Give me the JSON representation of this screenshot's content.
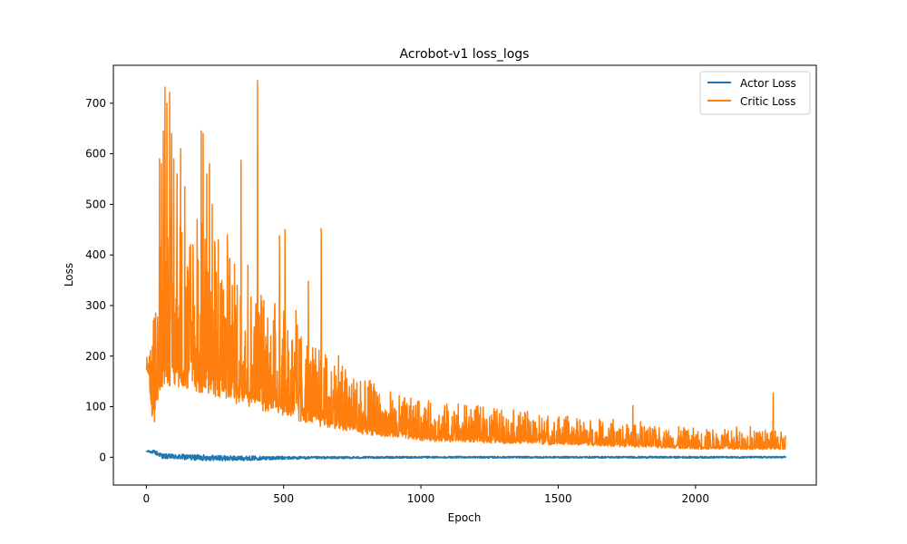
{
  "chart_data": {
    "type": "line",
    "title": "Acrobot-v1 loss_logs",
    "xlabel": "Epoch",
    "ylabel": "Loss",
    "xlim": [
      -120,
      2440
    ],
    "ylim": [
      -55,
      775
    ],
    "xticks": [
      0,
      500,
      1000,
      1500,
      2000
    ],
    "yticks": [
      0,
      100,
      200,
      300,
      400,
      500,
      600,
      700
    ],
    "grid": false,
    "legend_position": "top-right",
    "n_points": 2330,
    "series": [
      {
        "name": "Actor Loss",
        "color": "#1f77b4",
        "noise_amplitude": 4,
        "envelope": [
          [
            0,
            12
          ],
          [
            30,
            10
          ],
          [
            60,
            2
          ],
          [
            150,
            0
          ],
          [
            300,
            -2
          ],
          [
            600,
            -1
          ],
          [
            1000,
            0
          ],
          [
            2330,
            0
          ]
        ],
        "spread": [
          [
            0,
            2
          ],
          [
            40,
            8
          ],
          [
            200,
            10
          ],
          [
            400,
            7
          ],
          [
            600,
            4
          ],
          [
            1000,
            3
          ],
          [
            2330,
            3
          ]
        ]
      },
      {
        "name": "Critic Loss",
        "color": "#ff7f0e",
        "envelope": [
          [
            0,
            175
          ],
          [
            10,
            165
          ],
          [
            20,
            90
          ],
          [
            30,
            110
          ],
          [
            60,
            180
          ],
          [
            150,
            170
          ],
          [
            300,
            140
          ],
          [
            450,
            110
          ],
          [
            600,
            80
          ],
          [
            800,
            55
          ],
          [
            1000,
            40
          ],
          [
            1500,
            30
          ],
          [
            2000,
            20
          ],
          [
            2330,
            18
          ]
        ],
        "spread": [
          [
            0,
            20
          ],
          [
            60,
            260
          ],
          [
            250,
            220
          ],
          [
            450,
            160
          ],
          [
            650,
            100
          ],
          [
            900,
            60
          ],
          [
            1200,
            50
          ],
          [
            1500,
            40
          ],
          [
            1800,
            30
          ],
          [
            2330,
            25
          ]
        ],
        "peaks": [
          [
            0,
            175
          ],
          [
            10,
            170
          ],
          [
            20,
            110
          ],
          [
            30,
            70
          ],
          [
            40,
            190
          ],
          [
            48,
            590
          ],
          [
            55,
            580
          ],
          [
            62,
            645
          ],
          [
            68,
            732
          ],
          [
            75,
            700
          ],
          [
            85,
            722
          ],
          [
            92,
            640
          ],
          [
            100,
            590
          ],
          [
            112,
            560
          ],
          [
            125,
            610
          ],
          [
            140,
            535
          ],
          [
            155,
            350
          ],
          [
            170,
            420
          ],
          [
            185,
            470
          ],
          [
            200,
            645
          ],
          [
            207,
            640
          ],
          [
            220,
            560
          ],
          [
            230,
            580
          ],
          [
            240,
            500
          ],
          [
            250,
            420
          ],
          [
            262,
            430
          ],
          [
            275,
            350
          ],
          [
            295,
            440
          ],
          [
            310,
            260
          ],
          [
            325,
            300
          ],
          [
            345,
            587
          ],
          [
            360,
            250
          ],
          [
            370,
            380
          ],
          [
            380,
            180
          ],
          [
            392,
            240
          ],
          [
            405,
            745
          ],
          [
            418,
            320
          ],
          [
            428,
            310
          ],
          [
            440,
            220
          ],
          [
            452,
            160
          ],
          [
            470,
            250
          ],
          [
            485,
            438
          ],
          [
            500,
            265
          ],
          [
            505,
            450
          ],
          [
            515,
            250
          ],
          [
            530,
            230
          ],
          [
            545,
            290
          ],
          [
            560,
            200
          ],
          [
            580,
            170
          ],
          [
            590,
            348
          ],
          [
            605,
            180
          ],
          [
            620,
            160
          ],
          [
            637,
            452
          ],
          [
            650,
            150
          ],
          [
            665,
            120
          ],
          [
            685,
            180
          ],
          [
            700,
            201
          ],
          [
            720,
            130
          ],
          [
            740,
            140
          ],
          [
            760,
            120
          ],
          [
            780,
            150
          ],
          [
            800,
            80
          ],
          [
            850,
            90
          ],
          [
            890,
            110
          ],
          [
            930,
            100
          ],
          [
            1000,
            80
          ],
          [
            1050,
            75
          ],
          [
            1100,
            70
          ],
          [
            1150,
            60
          ],
          [
            1200,
            70
          ],
          [
            1240,
            75
          ],
          [
            1300,
            80
          ],
          [
            1350,
            60
          ],
          [
            1400,
            70
          ],
          [
            1450,
            70
          ],
          [
            1500,
            65
          ],
          [
            1550,
            60
          ],
          [
            1600,
            55
          ],
          [
            1650,
            75
          ],
          [
            1700,
            75
          ],
          [
            1750,
            65
          ],
          [
            1772,
            102
          ],
          [
            1800,
            70
          ],
          [
            1850,
            50
          ],
          [
            1900,
            35
          ],
          [
            1950,
            30
          ],
          [
            2000,
            30
          ],
          [
            2050,
            50
          ],
          [
            2100,
            40
          ],
          [
            2150,
            60
          ],
          [
            2200,
            60
          ],
          [
            2240,
            40
          ],
          [
            2283,
            127
          ],
          [
            2300,
            40
          ],
          [
            2330,
            42
          ]
        ]
      }
    ]
  }
}
